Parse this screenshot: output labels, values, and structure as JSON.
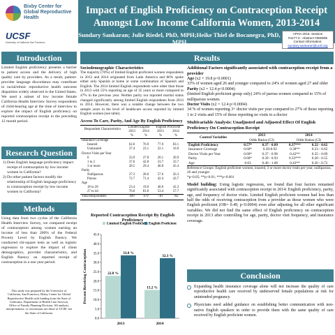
{
  "header": {
    "logo_text": "Bixby Center for Global Reproductive Health",
    "ucsf_logo": "UCSF",
    "ucsf_sub": "University of California San Francisco",
    "title_line1": "Impact of English Proficiency on Contraception Receipt",
    "title_line2": "Amongst Low Income California Women, 2013-2014",
    "authors": "Sundary Sankaran; Julie Riedel, PhD, MPH;Heike Thiel de Bocanegra, PhD, MPH",
    "apha_lines": [
      "APHA 2016: Session",
      "#4177.0 : Abstract #360595",
      "Contact information:"
    ],
    "apha_email": "sundary.sankaran@ucsf.org"
  },
  "colors": {
    "teal": "#3d7f8f",
    "bar_dark": "#2f6f86",
    "bar_light": "#b8d9d2"
  },
  "introduction": {
    "heading": "Introduction",
    "text": "Limited English proficiency presents a barrier to patient access and the delivery of high quality care by providers. As a result, patient-provider language discordance may contribute to racial/ethnic reproductive health outcome disparities widely observed in the United States. We used a subset of low income female California Health Interview Survey respondents of child-bearing age at the time of interview to explore the impact of English proficiency on reported contraception receipt in the preceding 12 month period."
  },
  "research_question": {
    "heading": "Research Question",
    "items": [
      "1) Does English language proficiency impact receipt of contraception by low income women in California?",
      "2) Do other patient factors modify the relationship of English language proficiency to contraception receipt by low income women in California?"
    ]
  },
  "methods": {
    "heading": "Methods",
    "text": "Using data from two cycles of the California Health Interview Survey, we compared receipt of contraception among women earning an income of less than 200% of the Federal Poverty Level by English fluency. We conducted chi-square tests as well as logistic regression to explore the impact of client demographics, provider characteristics, and English fluency on reported receipt of contraception in a one year period.",
    "funding": "This study was prepared by the University of California, San Francisco, Bixby Center for Global Reproductive Health with funding from the State of California, Department of Health Care Services, Office of Family Planning Division. All analysis, interpretations, or conclusions are those of UCSF, not the State of California."
  },
  "results": {
    "heading": "Results",
    "socio_heading": "Sociodemographic Characteristics",
    "socio_text": "The majority (70%) of limited English proficient women respondents in 2013 and 2014 originated from Latin America and 86% spoke either only Spanish at home or some combination of Spanish and English. The 2014 limited English respondents were older than those in 2013 with 55% reporting an age of 35 years or more compared to 47% in the previous year. Neither parity nor reported marital status changed significantly among limited English respondents from 2013 to 2014. However, there was a notable change between the two sample years in the level of healthcare access reported by limited English women (see table).",
    "table_title": "Access To Care, Parity, And Age By English Proficiency",
    "table": {
      "col_head": "Respondent Characteristics",
      "groups": [
        "Limited English",
        "English Proficient"
      ],
      "years": [
        "2013",
        "2014",
        "2013",
        "2014"
      ],
      "units": [
        "%",
        "%",
        "%",
        "%"
      ],
      "rows": [
        {
          "label": "Insurance Coverage",
          "values": [
            "",
            "",
            "",
            ""
          ]
        },
        {
          "label": "Insured",
          "indent": true,
          "values": [
            "62.6",
            "76.9",
            "77.9",
            "83.1"
          ]
        },
        {
          "label": "Uninsured",
          "indent": true,
          "values": [
            "37.4",
            "23.1",
            "22.1",
            "16.9"
          ]
        },
        {
          "label": "Doctor Visits per Year",
          "values": [
            "",
            "",
            "",
            ""
          ]
        },
        {
          "label": "0",
          "indent": true,
          "values": [
            "33.9",
            "27.8",
            "20.1",
            "20.9"
          ]
        },
        {
          "label": "1 to 2",
          "indent": true,
          "values": [
            "37.6",
            "42.8",
            "33.7",
            "33.7"
          ]
        },
        {
          "label": "3 or more",
          "indent": true,
          "values": [
            "28.5",
            "29.4",
            "46.8",
            "45.4"
          ]
        },
        {
          "label": "Parity",
          "values": [
            "",
            "",
            "",
            ""
          ]
        },
        {
          "label": "Nulliparous",
          "indent": true,
          "values": [
            "27.3",
            "28.6",
            "57.6",
            "56.3"
          ]
        },
        {
          "label": "Parous",
          "indent": true,
          "values": [
            "72.7",
            "71.4",
            "42.4",
            "43.7"
          ]
        },
        {
          "label": "Age",
          "values": [
            "",
            "",
            "",
            ""
          ]
        },
        {
          "label": "18 to 26",
          "indent": true,
          "values": [
            "23.4",
            "19.0",
            "46.6",
            "42.3"
          ]
        },
        {
          "label": "27 to 44",
          "indent": true,
          "values": [
            "76.6",
            "81.0",
            "53.4",
            "57.7"
          ]
        },
        {
          "label": "Total Respondents",
          "values": [
            "499",
            "479",
            "781",
            "702"
          ]
        }
      ]
    },
    "additional_heading": "Additional Factors significantly associated with contraception receipt from a provider",
    "factors": [
      {
        "label": "Age",
        "stat": " (x2 = 19.8 p<0.0001)",
        "text": "33% of women aged 26 and younger compared to 24% of women aged 27 and older"
      },
      {
        "label": "Parity",
        "stat": " (x2 = 12.4 p<0.0004)",
        "text": "(limited English proficient group only) 24% of parous women compared to 15% of nulliparous women."
      },
      {
        "label": "Doctor Visits",
        "stat": " (x2 = 12.4 p<0.0004)",
        "text": "34 % of women reporting 3+ doctor visits per year compared to 27% of those reporting 1 to 2 visits and 15% of those reporting no visits to a doctor"
      }
    ],
    "multivar_heading": "Multivariable Analysis: Unadjusted and Adjusted Effect Of English Proficiency On Contraception Receipt",
    "mtable": {
      "col_head": "Control Variables",
      "years": [
        "2013",
        "2014"
      ],
      "sub": [
        "Odds Ratios (CI)",
        "Odds Ratios (CI)"
      ],
      "rows": [
        {
          "label": "English Proficiency",
          "bold": true,
          "values": [
            "0.57*",
            "0.37 - 0.89",
            "0.37***",
            "0.22 - 0.62"
          ]
        },
        {
          "label": "Insurance Coverage",
          "values": [
            "0.60*",
            "0.39-0.92",
            "0.38**",
            "0.23 - 0.62"
          ]
        },
        {
          "label": "Doctor Visits per Year",
          "values": [
            "0.60*",
            "0.37 - 0.96",
            "0.42**",
            "0.25 - 0.69"
          ]
        },
        {
          "label": "Parity",
          "values": [
            "0.60*",
            "0.39 - 0.93",
            "0.33***",
            "0.20 - 0.55"
          ]
        },
        {
          "label": "Age",
          "values": [
            "0.63",
            "0.40 - 1.00",
            "0.43**",
            "0.26 - 0.72"
          ]
        }
      ],
      "note": "Reference Groups: English proficient women, insured, 3 or more doctor visits per year, nulliparous, 26 and younger",
      "sig": "*p<0.05; **p<0.01; ***p<0.001"
    },
    "model_building": "Model building:",
    "model_text": " Using logistic regression, we found that four factors remained significantly associated with contraception receipt in 2014: English proficiency, parity, age, and frequency of doctor visits. Limited English proficient women had less than half the odds of receiving contraception from a provider as those women who were English proficient (OR= 0.49, p<0.0004) even after adjusting for all other significant variables. We did not find the same effect of English proficiency on contraception receipt in 2013 after controlling for age, parity, doctor visit frequency, and insurance coverage."
  },
  "chart_data": {
    "type": "bar",
    "title": "Reported Contraception Receipt By English Proficiency",
    "categories": [
      "2013",
      "2014"
    ],
    "series": [
      {
        "name": "Limited English Proficient",
        "values": [
          22.8,
          15.2
        ],
        "labels": [
          "22.8 %",
          "15.2 %"
        ]
      },
      {
        "name": "English Proficient",
        "values": [
          33.8,
          32.3
        ],
        "labels": [
          "33.8 %",
          "32.3 %"
        ]
      }
    ],
    "ylabel": "Percent Receiving Contraception",
    "ylim": [
      0,
      45
    ],
    "yticks": [
      "0.0",
      "5.0",
      "10.0",
      "15.0",
      "20.0",
      "25.0",
      "30.0",
      "35.0",
      "40.0",
      "45.0"
    ],
    "legend": "top"
  },
  "conclusion": {
    "heading": "Conclusion",
    "items": [
      "Expanding health insurance coverage alone will not increase the quality of care reproductive health care received by underserved female populations at risk for unintended pregnancy.",
      "Physicians need added guidance on establishing better communication with non-native English speakers in order to provide them with the same quality of care received by English proficient women."
    ]
  }
}
